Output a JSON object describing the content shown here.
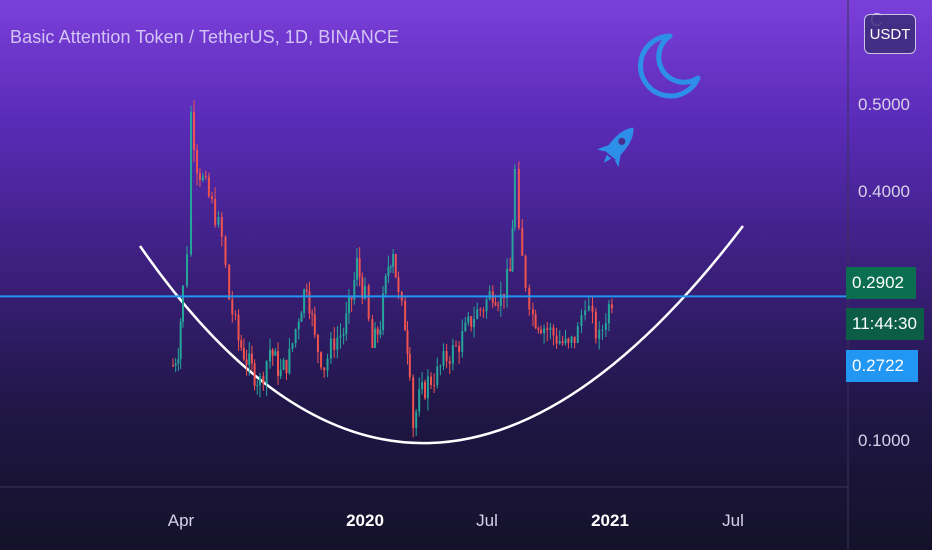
{
  "header": {
    "title": "Basic Attention Token / TetherUS, 1D, BINANCE",
    "currency_button": "USDT",
    "clipped_char": "C"
  },
  "price_labels": {
    "last_price": "0.2902",
    "countdown": "11:44:30",
    "horizontal_line": "0.2722",
    "last_price_color": "#0b6e4f",
    "countdown_color": "#0b5e45",
    "horizontal_line_color": "#2196f3"
  },
  "icons": [
    "moon-icon",
    "rocket-icon"
  ],
  "chart_data": {
    "type": "candlestick",
    "title": "Basic Attention Token / TetherUS, 1D, BINANCE",
    "x_ticks": [
      "Apr",
      "2020",
      "Jul",
      "2021",
      "Jul"
    ],
    "x_ticks_bold": [
      false,
      true,
      false,
      true,
      false
    ],
    "y_ticks": [
      "0.5000",
      "0.4000",
      "0.1000"
    ],
    "ylim": [
      0.05,
      0.55
    ],
    "horizontal_line": 0.2722,
    "last_price": 0.2902,
    "grid": false,
    "line_color": "#2196f3",
    "up_color": "#26a69a",
    "down_color": "#ef5350",
    "pattern": "cup (rounding bottom) drawn in white",
    "series": [
      {
        "values": [
          {
            "date": "2019-03-20",
            "value": 0.19
          },
          {
            "date": "2019-03-28",
            "value": 0.21
          },
          {
            "date": "2019-04-04",
            "value": 0.28
          },
          {
            "date": "2019-04-10",
            "value": 0.33
          },
          {
            "date": "2019-04-16",
            "value": 0.49
          },
          {
            "date": "2019-04-25",
            "value": 0.43
          },
          {
            "date": "2019-05-08",
            "value": 0.4
          },
          {
            "date": "2019-05-22",
            "value": 0.37
          },
          {
            "date": "2019-06-01",
            "value": 0.34
          },
          {
            "date": "2019-06-12",
            "value": 0.27
          },
          {
            "date": "2019-06-26",
            "value": 0.22
          },
          {
            "date": "2019-07-12",
            "value": 0.19
          },
          {
            "date": "2019-07-28",
            "value": 0.17
          },
          {
            "date": "2019-08-12",
            "value": 0.21
          },
          {
            "date": "2019-08-28",
            "value": 0.18
          },
          {
            "date": "2019-09-10",
            "value": 0.2
          },
          {
            "date": "2019-09-24",
            "value": 0.25
          },
          {
            "date": "2019-10-06",
            "value": 0.29
          },
          {
            "date": "2019-10-18",
            "value": 0.22
          },
          {
            "date": "2019-11-01",
            "value": 0.19
          },
          {
            "date": "2019-11-16",
            "value": 0.22
          },
          {
            "date": "2019-11-30",
            "value": 0.23
          },
          {
            "date": "2019-12-12",
            "value": 0.27
          },
          {
            "date": "2019-12-20",
            "value": 0.31
          },
          {
            "date": "2020-01-01",
            "value": 0.27
          },
          {
            "date": "2020-01-12",
            "value": 0.21
          },
          {
            "date": "2020-01-24",
            "value": 0.24
          },
          {
            "date": "2020-02-05",
            "value": 0.31
          },
          {
            "date": "2020-02-12",
            "value": 0.33
          },
          {
            "date": "2020-02-20",
            "value": 0.27
          },
          {
            "date": "2020-03-01",
            "value": 0.24
          },
          {
            "date": "2020-03-08",
            "value": 0.19
          },
          {
            "date": "2020-03-13",
            "value": 0.12
          },
          {
            "date": "2020-03-22",
            "value": 0.15
          },
          {
            "date": "2020-04-04",
            "value": 0.17
          },
          {
            "date": "2020-04-18",
            "value": 0.18
          },
          {
            "date": "2020-05-02",
            "value": 0.2
          },
          {
            "date": "2020-05-16",
            "value": 0.21
          },
          {
            "date": "2020-05-30",
            "value": 0.23
          },
          {
            "date": "2020-06-12",
            "value": 0.25
          },
          {
            "date": "2020-06-26",
            "value": 0.26
          },
          {
            "date": "2020-07-10",
            "value": 0.28
          },
          {
            "date": "2020-07-22",
            "value": 0.27
          },
          {
            "date": "2020-08-05",
            "value": 0.3
          },
          {
            "date": "2020-08-12",
            "value": 0.42
          },
          {
            "date": "2020-08-18",
            "value": 0.34
          },
          {
            "date": "2020-08-28",
            "value": 0.29
          },
          {
            "date": "2020-09-08",
            "value": 0.25
          },
          {
            "date": "2020-09-20",
            "value": 0.24
          },
          {
            "date": "2020-10-04",
            "value": 0.23
          },
          {
            "date": "2020-10-18",
            "value": 0.22
          },
          {
            "date": "2020-10-31",
            "value": 0.21
          },
          {
            "date": "2020-11-14",
            "value": 0.23
          },
          {
            "date": "2020-11-25",
            "value": 0.27
          },
          {
            "date": "2020-12-06",
            "value": 0.24
          },
          {
            "date": "2020-12-16",
            "value": 0.22
          },
          {
            "date": "2020-12-26",
            "value": 0.25
          },
          {
            "date": "2021-01-04",
            "value": 0.27
          },
          {
            "date": "2021-01-10",
            "value": 0.2902
          }
        ]
      }
    ]
  }
}
